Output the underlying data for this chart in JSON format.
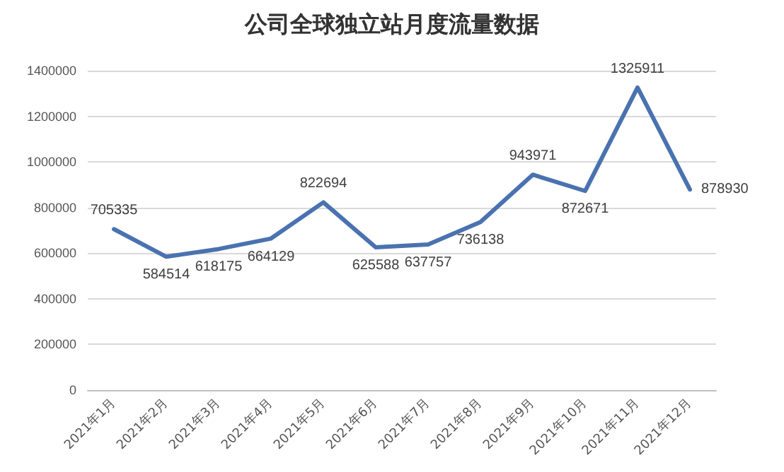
{
  "chart_data": {
    "type": "line",
    "title": "公司全球独立站月度流量数据",
    "categories": [
      "2021年1月",
      "2021年2月",
      "2021年3月",
      "2021年4月",
      "2021年5月",
      "2021年6月",
      "2021年7月",
      "2021年8月",
      "2021年9月",
      "2021年10月",
      "2021年11月",
      "2021年12月"
    ],
    "series": [
      {
        "color": "#4a72b0",
        "values": [
          705335,
          584514,
          618175,
          664129,
          822694,
          625588,
          637757,
          736138,
          943971,
          872671,
          1325911,
          878930
        ]
      }
    ],
    "ylim": [
      0,
      1400000
    ],
    "yticks": [
      0,
      200000,
      400000,
      600000,
      800000,
      1000000,
      1200000,
      1400000
    ],
    "grid": "y",
    "marker": "none",
    "line_style": "solid",
    "data_labels": true
  }
}
